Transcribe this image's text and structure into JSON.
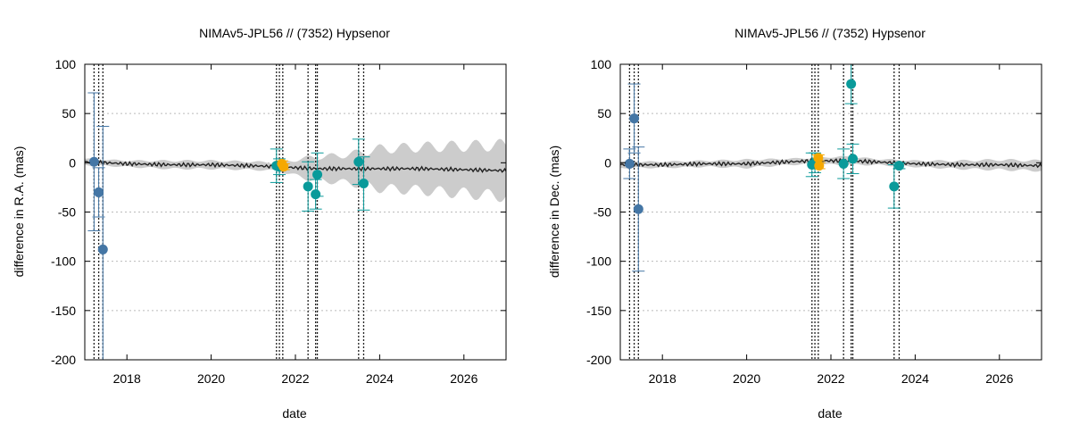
{
  "colors": {
    "background": "#ffffff",
    "axis": "#000000",
    "grid": "#bbbbbb",
    "model_band": "#cccccc",
    "model_line": "#222222",
    "series_blue": "#4476a5",
    "series_teal": "#0a9a9a",
    "series_orange": "#f5a800",
    "vline": "#222222"
  },
  "chart_data": [
    {
      "type": "scatter",
      "title": "NIMAv5-JPL56 // (7352) Hypsenor",
      "xlabel": "date",
      "ylabel": "difference in R.A. (mas)",
      "xlim": [
        2017.0,
        2027.0
      ],
      "ylim": [
        -200,
        100
      ],
      "xticks": [
        2018,
        2020,
        2022,
        2024,
        2026
      ],
      "yticks": [
        100,
        50,
        0,
        -50,
        -100,
        -150,
        -200
      ],
      "grid": "horizontal dotted",
      "legend": "none",
      "vlines": [
        2017.22,
        2017.33,
        2017.43,
        2021.55,
        2021.62,
        2021.7,
        2022.3,
        2022.48,
        2022.52,
        2023.5,
        2023.62
      ],
      "model": {
        "line": [
          [
            2017.0,
            1
          ],
          [
            2018,
            -1
          ],
          [
            2019,
            -2
          ],
          [
            2020,
            -2
          ],
          [
            2021,
            -3
          ],
          [
            2021.6,
            -4
          ],
          [
            2022,
            -5
          ],
          [
            2022.5,
            -6
          ],
          [
            2023,
            -6
          ],
          [
            2023.5,
            -6
          ],
          [
            2024,
            -6
          ],
          [
            2025,
            -6
          ],
          [
            2026,
            -7
          ],
          [
            2027,
            -8
          ]
        ],
        "band_half_width": [
          [
            2017.0,
            3
          ],
          [
            2018,
            3
          ],
          [
            2019,
            4
          ],
          [
            2020,
            4
          ],
          [
            2021,
            4
          ],
          [
            2021.6,
            4
          ],
          [
            2022,
            8
          ],
          [
            2022.5,
            12
          ],
          [
            2023,
            13
          ],
          [
            2023.5,
            16
          ],
          [
            2024,
            20
          ],
          [
            2025,
            22
          ],
          [
            2026,
            24
          ],
          [
            2027,
            26
          ]
        ]
      },
      "series": [
        {
          "color": "blue",
          "points": [
            {
              "x": 2017.22,
              "y": 1,
              "err": 70
            },
            {
              "x": 2017.33,
              "y": -30,
              "err": 25
            },
            {
              "x": 2017.43,
              "y": -88,
              "err": 125
            }
          ]
        },
        {
          "color": "teal",
          "points": [
            {
              "x": 2021.55,
              "y": -3,
              "err": 17
            },
            {
              "x": 2021.62,
              "y": -4,
              "err": 8
            },
            {
              "x": 2022.3,
              "y": -24,
              "err": 25
            },
            {
              "x": 2022.48,
              "y": -32,
              "err": 15
            },
            {
              "x": 2022.52,
              "y": -12,
              "err": 22
            },
            {
              "x": 2023.5,
              "y": 1,
              "err": 23
            },
            {
              "x": 2023.62,
              "y": -21,
              "err": 27
            }
          ]
        },
        {
          "color": "orange",
          "points": [
            {
              "x": 2021.68,
              "y": -1,
              "err": 3
            },
            {
              "x": 2021.72,
              "y": -4,
              "err": 3
            }
          ]
        }
      ]
    },
    {
      "type": "scatter",
      "title": "NIMAv5-JPL56 // (7352) Hypsenor",
      "xlabel": "date",
      "ylabel": "difference in Dec. (mas)",
      "xlim": [
        2017.0,
        2027.0
      ],
      "ylim": [
        -200,
        100
      ],
      "xticks": [
        2018,
        2020,
        2022,
        2024,
        2026
      ],
      "yticks": [
        100,
        50,
        0,
        -50,
        -100,
        -150,
        -200
      ],
      "grid": "horizontal dotted",
      "legend": "none",
      "vlines": [
        2017.22,
        2017.33,
        2017.43,
        2021.55,
        2021.62,
        2021.7,
        2022.3,
        2022.48,
        2022.52,
        2023.5,
        2023.62
      ],
      "model": {
        "line": [
          [
            2017.0,
            -2
          ],
          [
            2018,
            -2
          ],
          [
            2019,
            -1
          ],
          [
            2020,
            -1
          ],
          [
            2021,
            1
          ],
          [
            2021.6,
            2
          ],
          [
            2022,
            2
          ],
          [
            2022.5,
            2
          ],
          [
            2023,
            1
          ],
          [
            2023.5,
            0
          ],
          [
            2024,
            -1
          ],
          [
            2025,
            -2
          ],
          [
            2026,
            -2
          ],
          [
            2027,
            -3
          ]
        ],
        "band_half_width": [
          [
            2017.0,
            3
          ],
          [
            2018,
            3
          ],
          [
            2019,
            3
          ],
          [
            2020,
            4
          ],
          [
            2021,
            3
          ],
          [
            2021.6,
            3
          ],
          [
            2022,
            4
          ],
          [
            2022.5,
            4
          ],
          [
            2023,
            3
          ],
          [
            2023.5,
            3
          ],
          [
            2024,
            3
          ],
          [
            2025,
            4
          ],
          [
            2026,
            5
          ],
          [
            2027,
            5
          ]
        ]
      },
      "series": [
        {
          "color": "blue",
          "points": [
            {
              "x": 2017.22,
              "y": -1,
              "err": 15
            },
            {
              "x": 2017.33,
              "y": 45,
              "err": 35
            },
            {
              "x": 2017.43,
              "y": -47,
              "err": 63
            }
          ]
        },
        {
          "color": "teal",
          "points": [
            {
              "x": 2021.55,
              "y": -2,
              "err": 12
            },
            {
              "x": 2021.62,
              "y": 0,
              "err": 10
            },
            {
              "x": 2022.3,
              "y": -1,
              "err": 15
            },
            {
              "x": 2022.48,
              "y": 80,
              "err": 20
            },
            {
              "x": 2022.52,
              "y": 4,
              "err": 15
            },
            {
              "x": 2023.5,
              "y": -24,
              "err": 22
            },
            {
              "x": 2023.62,
              "y": -3,
              "err": 3
            }
          ]
        },
        {
          "color": "orange",
          "points": [
            {
              "x": 2021.7,
              "y": 5,
              "err": 3
            },
            {
              "x": 2021.72,
              "y": -3,
              "err": 3
            }
          ]
        }
      ]
    }
  ]
}
